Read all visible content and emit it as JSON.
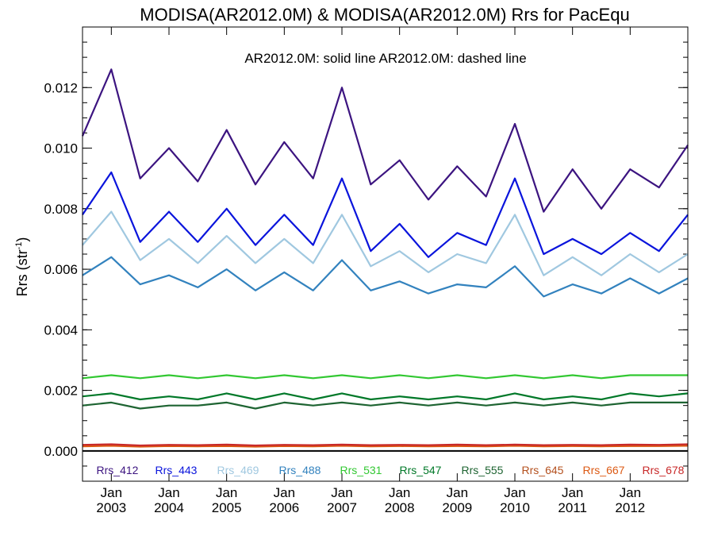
{
  "chart_data": {
    "type": "line",
    "title": "MODISA(AR2012.0M) & MODISA(AR2012.0M)  Rrs for PacEqu",
    "subtitle": "AR2012.0M: solid line   AR2012.0M: dashed line",
    "ylabel": "Rrs (str",
    "ylabel_sup": "-1",
    "ylabel_close": ")",
    "ylim": [
      -0.001,
      0.014
    ],
    "xlim": [
      2002.5,
      2013.0
    ],
    "yticks": [
      {
        "value": 0.0,
        "label": "0.000"
      },
      {
        "value": 0.002,
        "label": "0.002"
      },
      {
        "value": 0.004,
        "label": "0.004"
      },
      {
        "value": 0.006,
        "label": "0.006"
      },
      {
        "value": 0.008,
        "label": "0.008"
      },
      {
        "value": 0.01,
        "label": "0.010"
      },
      {
        "value": 0.012,
        "label": "0.012"
      }
    ],
    "xticks": [
      {
        "value": 2003,
        "month": "Jan",
        "year": "2003"
      },
      {
        "value": 2004,
        "month": "Jan",
        "year": "2004"
      },
      {
        "value": 2005,
        "month": "Jan",
        "year": "2005"
      },
      {
        "value": 2006,
        "month": "Jan",
        "year": "2006"
      },
      {
        "value": 2007,
        "month": "Jan",
        "year": "2007"
      },
      {
        "value": 2008,
        "month": "Jan",
        "year": "2008"
      },
      {
        "value": 2009,
        "month": "Jan",
        "year": "2009"
      },
      {
        "value": 2010,
        "month": "Jan",
        "year": "2010"
      },
      {
        "value": 2011,
        "month": "Jan",
        "year": "2011"
      },
      {
        "value": 2012,
        "month": "Jan",
        "year": "2012"
      }
    ],
    "x": [
      2002.5,
      2003.0,
      2003.5,
      2004.0,
      2004.5,
      2005.0,
      2005.5,
      2006.0,
      2006.5,
      2007.0,
      2007.5,
      2008.0,
      2008.5,
      2009.0,
      2009.5,
      2010.0,
      2010.5,
      2011.0,
      2011.5,
      2012.0,
      2012.5,
      2013.0
    ],
    "series": [
      {
        "name": "Rrs_412",
        "color": "#3c1480",
        "values": [
          0.0104,
          0.0126,
          0.009,
          0.01,
          0.0089,
          0.0106,
          0.0088,
          0.0102,
          0.009,
          0.012,
          0.0088,
          0.0096,
          0.0083,
          0.0094,
          0.0084,
          0.0108,
          0.0079,
          0.0093,
          0.008,
          0.0093,
          0.0087,
          0.0101
        ]
      },
      {
        "name": "Rrs_443",
        "color": "#0a14dc",
        "values": [
          0.0078,
          0.0092,
          0.0069,
          0.0079,
          0.0069,
          0.008,
          0.0068,
          0.0078,
          0.0068,
          0.009,
          0.0066,
          0.0075,
          0.0064,
          0.0072,
          0.0068,
          0.009,
          0.0065,
          0.007,
          0.0065,
          0.0072,
          0.0066,
          0.0078
        ]
      },
      {
        "name": "Rrs_469",
        "color": "#a0c8e0",
        "values": [
          0.0068,
          0.0079,
          0.0063,
          0.007,
          0.0062,
          0.0071,
          0.0062,
          0.007,
          0.0062,
          0.0078,
          0.0061,
          0.0066,
          0.0059,
          0.0065,
          0.0062,
          0.0078,
          0.0058,
          0.0064,
          0.0058,
          0.0065,
          0.0059,
          0.0065
        ]
      },
      {
        "name": "Rrs_488",
        "color": "#3282be",
        "values": [
          0.0058,
          0.0064,
          0.0055,
          0.0058,
          0.0054,
          0.006,
          0.0053,
          0.0059,
          0.0053,
          0.0063,
          0.0053,
          0.0056,
          0.0052,
          0.0055,
          0.0054,
          0.0061,
          0.0051,
          0.0055,
          0.0052,
          0.0057,
          0.0052,
          0.0057
        ]
      },
      {
        "name": "Rrs_531",
        "color": "#32c832",
        "values": [
          0.0024,
          0.0025,
          0.0024,
          0.0025,
          0.0024,
          0.0025,
          0.0024,
          0.0025,
          0.0024,
          0.0025,
          0.0024,
          0.0025,
          0.0024,
          0.0025,
          0.0024,
          0.0025,
          0.0024,
          0.0025,
          0.0024,
          0.0025,
          0.0025,
          0.0025
        ]
      },
      {
        "name": "Rrs_547",
        "color": "#007828",
        "values": [
          0.0018,
          0.0019,
          0.0017,
          0.0018,
          0.0017,
          0.0019,
          0.0017,
          0.0019,
          0.0017,
          0.0019,
          0.0017,
          0.0018,
          0.0017,
          0.0018,
          0.0017,
          0.0019,
          0.0017,
          0.0018,
          0.0017,
          0.0019,
          0.0018,
          0.0019
        ]
      },
      {
        "name": "Rrs_555",
        "color": "#1e6432",
        "values": [
          0.0015,
          0.0016,
          0.0014,
          0.0015,
          0.0015,
          0.0016,
          0.0014,
          0.0016,
          0.0015,
          0.0016,
          0.0015,
          0.0016,
          0.0015,
          0.0016,
          0.0015,
          0.0016,
          0.0015,
          0.0016,
          0.0015,
          0.0016,
          0.0016,
          0.0016
        ]
      },
      {
        "name": "Rrs_645",
        "color": "#b4501e",
        "values": [
          0.00018,
          0.0002,
          0.00016,
          0.00018,
          0.00017,
          0.00019,
          0.00016,
          0.00018,
          0.00017,
          0.00019,
          0.00017,
          0.00018,
          0.00017,
          0.00019,
          0.00017,
          0.00019,
          0.00017,
          0.00018,
          0.00017,
          0.00019,
          0.00018,
          0.0002
        ]
      },
      {
        "name": "Rrs_667",
        "color": "#dc5a14",
        "values": [
          0.00015,
          0.00017,
          0.00014,
          0.00016,
          0.00015,
          0.00016,
          0.00014,
          0.00016,
          0.00015,
          0.00017,
          0.00015,
          0.00016,
          0.00015,
          0.00016,
          0.00015,
          0.00017,
          0.00015,
          0.00016,
          0.00015,
          0.00016,
          0.00016,
          0.00017
        ]
      },
      {
        "name": "Rrs_678",
        "color": "#c82828",
        "values": [
          0.0002,
          0.00022,
          0.00018,
          0.0002,
          0.00019,
          0.00021,
          0.00018,
          0.0002,
          0.00019,
          0.00021,
          0.00019,
          0.0002,
          0.00019,
          0.00021,
          0.00019,
          0.00021,
          0.00019,
          0.0002,
          0.00019,
          0.00021,
          0.0002,
          0.00022
        ]
      }
    ]
  }
}
